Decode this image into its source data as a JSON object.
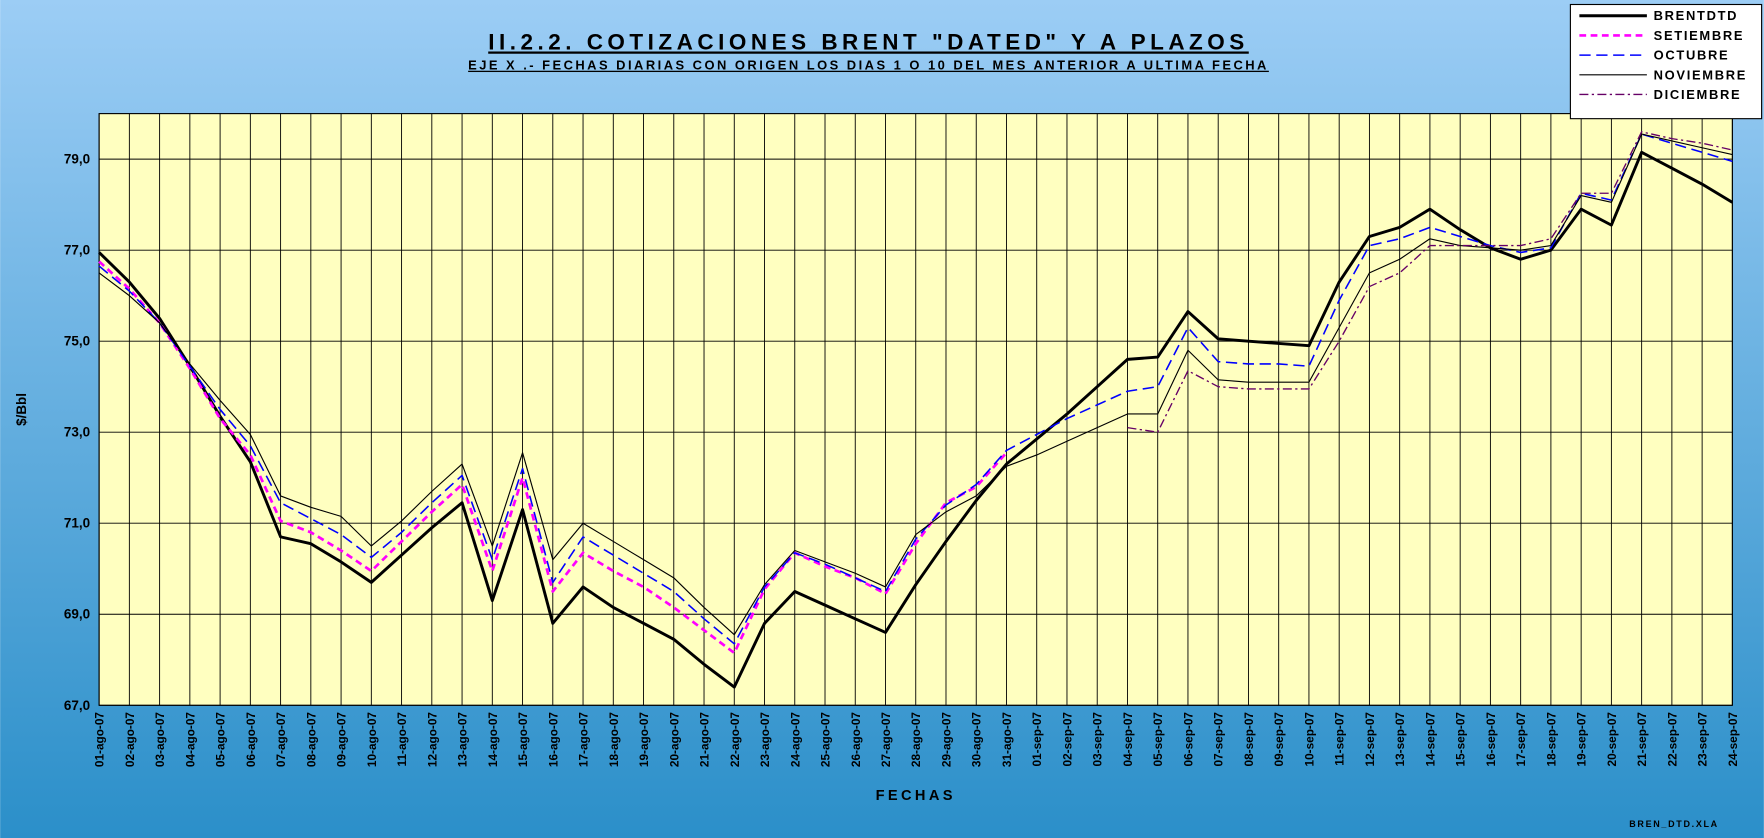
{
  "chart_data": {
    "type": "line",
    "title": "II.2.2. COTIZACIONES BRENT \"DATED\" Y A PLAZOS",
    "subtitle": "EJE X .- FECHAS DIARIAS CON ORIGEN LOS DIAS 1 O 10 DEL MES ANTERIOR A ULTIMA FECHA",
    "x_label": "FECHAS",
    "y_label": "$/Bbl",
    "footer": "BREN_DTD.XLA",
    "categories": [
      "01-ago-07",
      "02-ago-07",
      "03-ago-07",
      "04-ago-07",
      "05-ago-07",
      "06-ago-07",
      "07-ago-07",
      "08-ago-07",
      "09-ago-07",
      "10-ago-07",
      "11-ago-07",
      "12-ago-07",
      "13-ago-07",
      "14-ago-07",
      "15-ago-07",
      "16-ago-07",
      "17-ago-07",
      "18-ago-07",
      "19-ago-07",
      "20-ago-07",
      "21-ago-07",
      "22-ago-07",
      "23-ago-07",
      "24-ago-07",
      "25-ago-07",
      "26-ago-07",
      "27-ago-07",
      "28-ago-07",
      "29-ago-07",
      "30-ago-07",
      "31-ago-07",
      "01-sep-07",
      "02-sep-07",
      "03-sep-07",
      "04-sep-07",
      "05-sep-07",
      "06-sep-07",
      "07-sep-07",
      "08-sep-07",
      "09-sep-07",
      "10-sep-07",
      "11-sep-07",
      "12-sep-07",
      "13-sep-07",
      "14-sep-07",
      "15-sep-07",
      "16-sep-07",
      "17-sep-07",
      "18-sep-07",
      "19-sep-07",
      "20-sep-07",
      "21-sep-07",
      "22-sep-07",
      "23-sep-07",
      "24-sep-07"
    ],
    "series": [
      {
        "name": "BRENTDTD",
        "color": "#000000",
        "dash": "solid",
        "width": 2.6,
        "values": [
          76.95,
          76.3,
          75.5,
          74.45,
          73.35,
          72.35,
          70.7,
          70.55,
          70.15,
          69.7,
          70.3,
          70.9,
          71.45,
          69.3,
          71.3,
          68.8,
          69.6,
          69.15,
          68.8,
          68.45,
          67.9,
          67.4,
          68.8,
          69.5,
          69.2,
          68.9,
          68.6,
          69.65,
          70.6,
          71.5,
          72.3,
          72.85,
          73.4,
          74.0,
          74.6,
          74.65,
          75.65,
          75.05,
          75.0,
          74.95,
          74.9,
          76.3,
          77.3,
          77.5,
          77.9,
          77.45,
          77.05,
          76.8,
          77.0,
          77.9,
          77.55,
          79.15,
          78.8,
          78.45,
          78.05
        ]
      },
      {
        "name": "SETIEMBRE",
        "color": "#ff00ff",
        "dash": "dash",
        "width": 2.4,
        "values": [
          76.75,
          76.15,
          75.4,
          74.4,
          73.3,
          72.5,
          71.05,
          70.8,
          70.4,
          69.95,
          70.6,
          71.25,
          71.85,
          69.95,
          72.0,
          69.5,
          70.35,
          69.95,
          69.6,
          69.15,
          68.65,
          68.15,
          69.55,
          70.35,
          70.05,
          69.8,
          69.45,
          70.55,
          71.45,
          71.8,
          72.55,
          null,
          null,
          null,
          null,
          null,
          null,
          null,
          null,
          null,
          null,
          null,
          null,
          null,
          null,
          null,
          null,
          null,
          null,
          null,
          null,
          null,
          null,
          null,
          null
        ]
      },
      {
        "name": "OCTUBRE",
        "color": "#0000ff",
        "dash": "longdash",
        "width": 1.4,
        "values": [
          76.65,
          76.1,
          75.4,
          74.45,
          73.5,
          72.7,
          71.45,
          71.1,
          70.75,
          70.25,
          70.8,
          71.45,
          72.05,
          70.2,
          72.2,
          69.7,
          70.7,
          70.3,
          69.9,
          69.5,
          68.9,
          68.35,
          69.6,
          70.35,
          70.1,
          69.8,
          69.5,
          70.65,
          71.4,
          71.85,
          72.6,
          72.95,
          73.3,
          73.6,
          73.9,
          74.0,
          75.3,
          74.55,
          74.5,
          74.5,
          74.45,
          75.9,
          77.1,
          77.25,
          77.5,
          77.3,
          77.1,
          76.95,
          77.05,
          78.25,
          78.1,
          79.55,
          79.35,
          79.15,
          78.95
        ]
      },
      {
        "name": "NOVIEMBRE",
        "color": "#000000",
        "dash": "solid",
        "width": 1,
        "values": [
          76.5,
          76.0,
          75.4,
          74.5,
          73.7,
          72.95,
          71.6,
          71.35,
          71.15,
          70.5,
          71.05,
          71.7,
          72.3,
          70.5,
          72.55,
          70.2,
          71.0,
          70.6,
          70.2,
          69.8,
          69.15,
          68.55,
          69.65,
          70.4,
          70.15,
          69.9,
          69.6,
          70.75,
          71.25,
          71.6,
          72.25,
          72.5,
          72.8,
          73.1,
          73.4,
          73.4,
          74.8,
          74.15,
          74.1,
          74.1,
          74.1,
          75.3,
          76.5,
          76.8,
          77.25,
          77.1,
          77.05,
          77.0,
          77.1,
          78.2,
          78.05,
          79.55,
          79.4,
          79.25,
          79.1
        ]
      },
      {
        "name": "DICIEMBRE",
        "color": "#660066",
        "dash": "dashdot",
        "width": 1.2,
        "values": [
          null,
          null,
          null,
          null,
          null,
          null,
          null,
          null,
          null,
          null,
          null,
          null,
          null,
          null,
          null,
          null,
          null,
          null,
          null,
          null,
          null,
          null,
          null,
          null,
          null,
          null,
          null,
          null,
          null,
          null,
          null,
          null,
          null,
          null,
          73.1,
          73.0,
          74.35,
          74.0,
          73.95,
          73.95,
          73.95,
          75.0,
          76.2,
          76.5,
          77.1,
          77.1,
          77.1,
          77.1,
          77.25,
          78.25,
          78.25,
          79.6,
          79.45,
          79.35,
          79.2
        ]
      }
    ],
    "ylim": [
      67,
      80
    ],
    "yticks": [
      {
        "value": 67,
        "label": "67,0"
      },
      {
        "value": 69,
        "label": "69,0"
      },
      {
        "value": 71,
        "label": "71,0"
      },
      {
        "value": 73,
        "label": "73,0"
      },
      {
        "value": 75,
        "label": "75,0"
      },
      {
        "value": 77,
        "label": "77,0"
      },
      {
        "value": 79,
        "label": "79,0"
      }
    ],
    "grid": true,
    "legend": "top-right",
    "plot_background": "#ffffc0"
  }
}
